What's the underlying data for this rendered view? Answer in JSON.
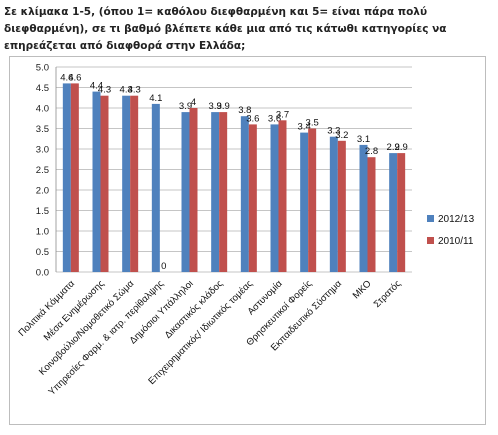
{
  "title": "Σε κλίμακα 1-5, (όπου 1= καθόλου διεφθαρμένη και 5= είναι πάρα πολύ διεφθαρμένη), σε τι βαθμό βλέπετε κάθε μια από τις κάτωθι κατηγορίες να επηρεάζεται από διαφθορά στην Ελλάδα;",
  "colors": {
    "series_2012": "#4f81bd",
    "series_2010": "#c0504d",
    "grid": "#8c8c8c"
  },
  "chart_data": {
    "type": "bar",
    "title": "Σε κλίμακα 1-5, (όπου 1= καθόλου διεφθαρμένη και 5= είναι πάρα πολύ διεφθαρμένη), σε τι βαθμό βλέπετε κάθε μια από τις κάτωθι κατηγορίες να επηρεάζεται από διαφθορά στην Ελλάδα;",
    "categories": [
      "Πολιτικά Κόμματα",
      "Μέσα Ενημέρωσης",
      "Κοινοβούλιο/Νομοθετικό Σώμα",
      "Υπηρεσίες Φαρμ. & ιατρ. περίθαλψης",
      "Δημόσιοι Υπάλληλοι",
      "Δικαστικός κλάδος",
      "Επιχειρηματικός/ Ιδιωτικός τομέας",
      "Αστυνομία",
      "Θρησκευτικοί Φορείς",
      "Εκπαιδευτικό Σύστημα",
      "ΜΚΟ",
      "Στρατός"
    ],
    "series": [
      {
        "name": "2012/13",
        "values": [
          4.6,
          4.4,
          4.3,
          4.1,
          3.9,
          3.9,
          3.8,
          3.6,
          3.4,
          3.3,
          3.1,
          2.9
        ]
      },
      {
        "name": "2010/11",
        "values": [
          4.6,
          4.3,
          4.3,
          0,
          4.0,
          3.9,
          3.6,
          3.7,
          3.5,
          3.2,
          2.8,
          2.9
        ]
      }
    ],
    "data_labels": [
      [
        "4.6",
        "4.4",
        "4.3",
        "4.1",
        "3.9",
        "3.9",
        "3.8",
        "3.6",
        "3.4",
        "3.3",
        "3.1",
        "2.9"
      ],
      [
        "4.6",
        "4.3",
        "4.3",
        "0",
        "4",
        "3.9",
        "3.6",
        "3.7",
        "3.5",
        "3.2",
        "2.8",
        "2.9"
      ]
    ],
    "ylim": [
      0,
      5
    ],
    "yticks": [
      "0.0",
      "0.5",
      "1.0",
      "1.5",
      "2.0",
      "2.5",
      "3.0",
      "3.5",
      "4.0",
      "4.5",
      "5.0"
    ],
    "xlabel": "",
    "ylabel": "",
    "grid": true,
    "legend": "right"
  }
}
